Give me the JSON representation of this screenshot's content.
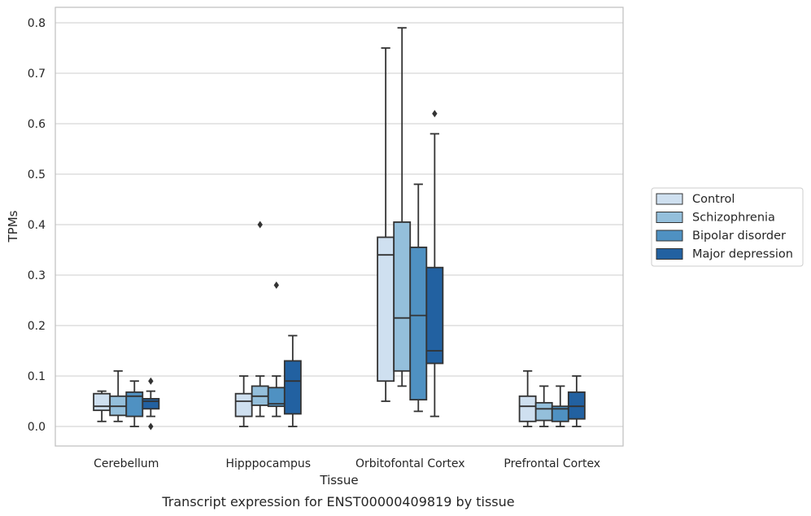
{
  "caption": "Transcript expression for ENST00000409819 by tissue",
  "colors": {
    "Control": "#cfe0f0",
    "Schizophrenia": "#94bfdb",
    "Bipolar disorder": "#4f91c2",
    "Major depression": "#2261a1",
    "line": "#333333",
    "grid": "#cccccc",
    "frame": "#bfbfbf"
  },
  "chart_data": {
    "type": "box",
    "xlabel": "Tissue",
    "ylabel": "TPMs",
    "ylim": [
      -0.04,
      0.83
    ],
    "yticks": [
      0.0,
      0.1,
      0.2,
      0.3,
      0.4,
      0.5,
      0.6,
      0.7,
      0.8
    ],
    "ytick_labels": [
      "0.0",
      "0.1",
      "0.2",
      "0.3",
      "0.4",
      "0.5",
      "0.6",
      "0.7",
      "0.8"
    ],
    "grid": "horizontal",
    "legend_position": "right",
    "categories": [
      "Cerebellum",
      "Hipppocampus",
      "Orbitofontal Cortex",
      "Prefrontal Cortex"
    ],
    "series": [
      {
        "name": "Control",
        "boxes": [
          {
            "whislo": 0.01,
            "q1": 0.032,
            "med": 0.04,
            "q3": 0.065,
            "whishi": 0.07,
            "fliers": []
          },
          {
            "whislo": 0.0,
            "q1": 0.02,
            "med": 0.05,
            "q3": 0.065,
            "whishi": 0.1,
            "fliers": []
          },
          {
            "whislo": 0.05,
            "q1": 0.09,
            "med": 0.34,
            "q3": 0.375,
            "whishi": 0.75,
            "fliers": []
          },
          {
            "whislo": 0.0,
            "q1": 0.01,
            "med": 0.04,
            "q3": 0.06,
            "whishi": 0.11,
            "fliers": []
          }
        ]
      },
      {
        "name": "Schizophrenia",
        "boxes": [
          {
            "whislo": 0.01,
            "q1": 0.022,
            "med": 0.04,
            "q3": 0.06,
            "whishi": 0.11,
            "fliers": []
          },
          {
            "whislo": 0.02,
            "q1": 0.042,
            "med": 0.06,
            "q3": 0.08,
            "whishi": 0.1,
            "fliers": [
              0.4
            ]
          },
          {
            "whislo": 0.08,
            "q1": 0.11,
            "med": 0.215,
            "q3": 0.405,
            "whishi": 0.79,
            "fliers": []
          },
          {
            "whislo": 0.0,
            "q1": 0.012,
            "med": 0.035,
            "q3": 0.047,
            "whishi": 0.08,
            "fliers": []
          }
        ]
      },
      {
        "name": "Bipolar disorder",
        "boxes": [
          {
            "whislo": 0.0,
            "q1": 0.02,
            "med": 0.06,
            "q3": 0.068,
            "whishi": 0.09,
            "fliers": []
          },
          {
            "whislo": 0.02,
            "q1": 0.04,
            "med": 0.045,
            "q3": 0.077,
            "whishi": 0.1,
            "fliers": [
              0.28
            ]
          },
          {
            "whislo": 0.03,
            "q1": 0.053,
            "med": 0.22,
            "q3": 0.355,
            "whishi": 0.48,
            "fliers": []
          },
          {
            "whislo": 0.0,
            "q1": 0.01,
            "med": 0.035,
            "q3": 0.04,
            "whishi": 0.08,
            "fliers": []
          }
        ]
      },
      {
        "name": "Major depression",
        "boxes": [
          {
            "whislo": 0.02,
            "q1": 0.035,
            "med": 0.05,
            "q3": 0.055,
            "whishi": 0.07,
            "fliers": [
              0.09,
              0.0
            ]
          },
          {
            "whislo": 0.0,
            "q1": 0.025,
            "med": 0.09,
            "q3": 0.13,
            "whishi": 0.18,
            "fliers": []
          },
          {
            "whislo": 0.02,
            "q1": 0.125,
            "med": 0.15,
            "q3": 0.315,
            "whishi": 0.58,
            "fliers": [
              0.62
            ]
          },
          {
            "whislo": 0.0,
            "q1": 0.015,
            "med": 0.04,
            "q3": 0.068,
            "whishi": 0.1,
            "fliers": []
          }
        ]
      }
    ]
  }
}
